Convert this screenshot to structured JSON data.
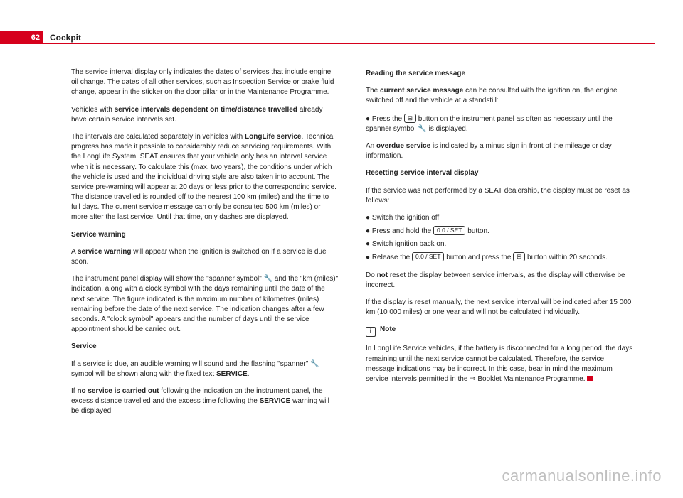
{
  "header": {
    "page_number": "62",
    "section": "Cockpit"
  },
  "left": {
    "p1": "The service interval display only indicates the dates of services that include engine oil change. The dates of all other services, such as Inspection Service or brake fluid change, appear in the sticker on the door pillar or in the Maintenance Programme.",
    "p2a": "Vehicles with ",
    "p2b": "service intervals dependent on time/distance travelled",
    "p2c": " already have certain service intervals set.",
    "p3a": "The intervals are calculated separately in vehicles with ",
    "p3b": "LongLife service",
    "p3c": ". Technical progress has made it possible to considerably reduce servicing requirements. With the LongLife System, SEAT ensures that your vehicle only has an interval service when it is necessary. To calculate this (max. two years), the conditions under which the vehicle is used and the individual driving style are also taken into account. The service pre-warning will appear at 20 days or less prior to the corresponding service. The distance travelled is rounded off to the nearest 100 km (miles) and the time to full days. The current service message can only be consulted 500 km (miles) or more after the last service. Until that time, only dashes are displayed.",
    "h1": "Service warning",
    "p4a": "A ",
    "p4b": "service warning",
    "p4c": " will appear when the ignition is switched on if a service is due soon.",
    "p5": "The instrument panel display will show the \"spanner symbol\" 🔧 and the \"km (miles)\" indication, along with a clock symbol with the days remaining until the date of the next service. The figure indicated is the maximum number of kilometres (miles) remaining before the date of the next service. The indication changes after a few seconds. A \"clock symbol\" appears and the number of days until the service appointment should be carried out.",
    "h2": "Service",
    "p6a": "If a service is due, an audible warning will sound and the flashing \"spanner\" 🔧 symbol will be shown along with the fixed text ",
    "p6b": "SERVICE",
    "p6c": ".",
    "p7a": "If ",
    "p7b": "no service is carried out",
    "p7c": " following the indication on the instrument panel, the excess distance travelled and the excess time following the ",
    "p7d": "SERVICE",
    "p7e": " warning will be displayed."
  },
  "right": {
    "h1": "Reading the service message",
    "p1a": "The ",
    "p1b": "current service message",
    "p1c": " can be consulted with the ignition on, the engine switched off and the vehicle at a standstill:",
    "li1a": "Press the ",
    "li1b": " button on the instrument panel as often as necessary until the spanner symbol 🔧 is displayed.",
    "p2a": "An ",
    "p2b": "overdue service",
    "p2c": " is indicated by a minus sign in front of the mileage or day information.",
    "h2": "Resetting service interval display",
    "p3": "If the service was not performed by a SEAT dealership, the display must be reset as follows:",
    "li_a": "Switch the ignition off.",
    "li_b1": "Press and hold the ",
    "li_b2": " button.",
    "li_b_btn": "0.0 / SET",
    "li_c": "Switch ignition back on.",
    "li_d1": "Release the ",
    "li_d2": " button and press the ",
    "li_d3": " button within 20 seconds.",
    "li_d_btn1": "0.0 / SET",
    "p4a": "Do ",
    "p4b": "not",
    "p4c": " reset the display between service intervals, as the display will otherwise be incorrect.",
    "p5": "If the display is reset manually, the next service interval will be indicated after 15 000 km (10 000 miles) or one year and will not be calculated individually.",
    "note_label": "Note",
    "note_body": "In LongLife Service vehicles, if the battery is disconnected for a long period, the days remaining until the next service cannot be calculated. Therefore, the service message indications may be incorrect. In this case, bear in mind the maximum service intervals permitted in the ⇒ Booklet Maintenance Programme."
  },
  "watermark": "carmanualsonline.info"
}
